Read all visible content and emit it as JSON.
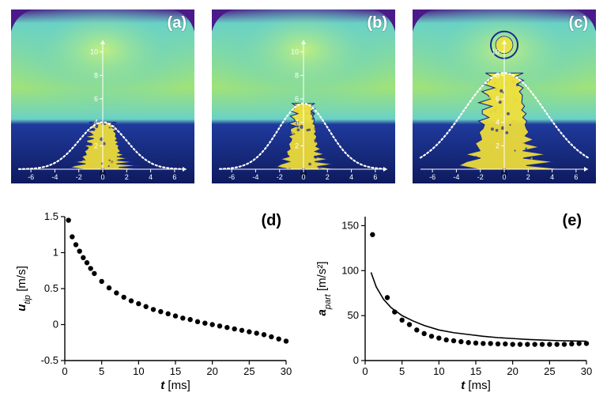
{
  "panels": {
    "a": {
      "label": "(a)"
    },
    "b": {
      "label": "(b)"
    },
    "c": {
      "label": "(c)"
    }
  },
  "heatmap_common": {
    "width_mm": 14,
    "height_mm": 12,
    "x_ticks": [
      -6,
      -4,
      -2,
      0,
      2,
      4,
      6
    ],
    "y_ticks": [
      2,
      4,
      6,
      8,
      10
    ],
    "y_max_label": 10,
    "gradient_top": "#4a1a8a",
    "gradient_upper_mid": "#6ad2c5",
    "gradient_mid": "#9fe27a",
    "gradient_lower": "#1f3a9c",
    "gradient_bottom": "#0e1a5e",
    "axis_color": "#ffffff",
    "axis_fontsize": 9,
    "dotted_curve_color": "#ffffff",
    "dotted_dash": "2 3",
    "dotted_width": 2.2,
    "splash_outline": "#1a2a8a",
    "splash_fill": "#f2e03a",
    "splash_fill2": "#e9d22c",
    "droplet_outline": "#1b2a8c"
  },
  "heatmaps": {
    "a": {
      "gaussian_halfwidth_mm": 2.0,
      "splash_height_mm": 4.0,
      "splash_halfwidth_mm": 1.6,
      "has_droplet": false
    },
    "b": {
      "gaussian_halfwidth_mm": 2.1,
      "splash_height_mm": 5.6,
      "splash_halfwidth_mm": 1.3,
      "has_droplet": false
    },
    "c": {
      "gaussian_halfwidth_mm": 3.4,
      "splash_height_mm": 8.2,
      "splash_halfwidth_mm": 2.2,
      "has_droplet": true,
      "droplet_y_mm": 10.6,
      "droplet_r_mm": 0.9
    }
  },
  "chart_d": {
    "label": "(d)",
    "xlabel": "t [ms]",
    "ylabel": "u",
    "ylabel_sub": "tip",
    "ylabel_unit": "[m/s]",
    "xlim": [
      0,
      30
    ],
    "ylim": [
      -0.5,
      1.5
    ],
    "xticks": [
      0,
      5,
      10,
      15,
      20,
      25,
      30
    ],
    "yticks": [
      -0.5,
      0,
      0.5,
      1.0,
      1.5
    ],
    "marker_color": "#000000",
    "marker_radius": 3.2,
    "axis_color": "#000000",
    "tick_fontsize": 13,
    "label_fontsize": 15,
    "points": [
      [
        0.5,
        1.45
      ],
      [
        1,
        1.22
      ],
      [
        1.5,
        1.11
      ],
      [
        2,
        1.02
      ],
      [
        2.5,
        0.93
      ],
      [
        3,
        0.86
      ],
      [
        3.5,
        0.78
      ],
      [
        4,
        0.71
      ],
      [
        5,
        0.6
      ],
      [
        6,
        0.51
      ],
      [
        7,
        0.44
      ],
      [
        8,
        0.38
      ],
      [
        9,
        0.33
      ],
      [
        10,
        0.29
      ],
      [
        11,
        0.25
      ],
      [
        12,
        0.21
      ],
      [
        13,
        0.18
      ],
      [
        14,
        0.15
      ],
      [
        15,
        0.12
      ],
      [
        16,
        0.09
      ],
      [
        17,
        0.07
      ],
      [
        18,
        0.04
      ],
      [
        19,
        0.02
      ],
      [
        20,
        0.0
      ],
      [
        21,
        -0.02
      ],
      [
        22,
        -0.04
      ],
      [
        23,
        -0.06
      ],
      [
        24,
        -0.08
      ],
      [
        25,
        -0.1
      ],
      [
        26,
        -0.12
      ],
      [
        27,
        -0.14
      ],
      [
        28,
        -0.17
      ],
      [
        29,
        -0.2
      ],
      [
        30,
        -0.23
      ]
    ]
  },
  "chart_e": {
    "label": "(e)",
    "xlabel": "t [ms]",
    "ylabel": "a",
    "ylabel_sub": "part",
    "ylabel_unit": "[m/s²]",
    "xlim": [
      0,
      30
    ],
    "ylim": [
      0,
      160
    ],
    "xticks": [
      0,
      5,
      10,
      15,
      20,
      25,
      30
    ],
    "yticks": [
      0,
      50,
      100,
      150
    ],
    "marker_color": "#000000",
    "marker_radius": 3.2,
    "line_color": "#000000",
    "line_width": 1.6,
    "axis_color": "#000000",
    "tick_fontsize": 13,
    "label_fontsize": 15,
    "points": [
      [
        1,
        140
      ],
      [
        3,
        70
      ],
      [
        4,
        54
      ],
      [
        5,
        45
      ],
      [
        6,
        40
      ],
      [
        7,
        34
      ],
      [
        8,
        30
      ],
      [
        9,
        27
      ],
      [
        10,
        25
      ],
      [
        11,
        23
      ],
      [
        12,
        22
      ],
      [
        13,
        21
      ],
      [
        14,
        20
      ],
      [
        15,
        19.5
      ],
      [
        16,
        19
      ],
      [
        17,
        19
      ],
      [
        18,
        18.5
      ],
      [
        19,
        18.5
      ],
      [
        20,
        18
      ],
      [
        21,
        18
      ],
      [
        22,
        18
      ],
      [
        23,
        18
      ],
      [
        24,
        18
      ],
      [
        25,
        18
      ],
      [
        26,
        18
      ],
      [
        27,
        18
      ],
      [
        28,
        18.5
      ],
      [
        29,
        19
      ],
      [
        30,
        19
      ]
    ],
    "fit_curve": [
      [
        0.8,
        98
      ],
      [
        1.5,
        82
      ],
      [
        2.5,
        68
      ],
      [
        3.5,
        59
      ],
      [
        5,
        50
      ],
      [
        6.5,
        44
      ],
      [
        8,
        39
      ],
      [
        10,
        34
      ],
      [
        12,
        31
      ],
      [
        14,
        29
      ],
      [
        16,
        27
      ],
      [
        18,
        25.5
      ],
      [
        20,
        24.5
      ],
      [
        22,
        23.5
      ],
      [
        24,
        22.8
      ],
      [
        26,
        22.2
      ],
      [
        28,
        21.8
      ],
      [
        30,
        21.5
      ]
    ]
  }
}
